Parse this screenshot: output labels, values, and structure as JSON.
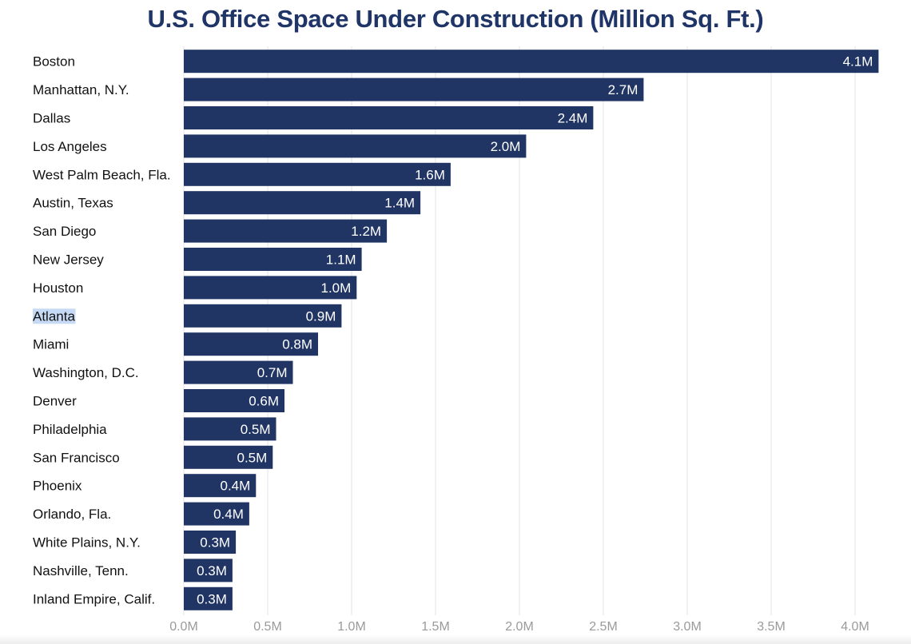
{
  "chart_data": {
    "type": "bar",
    "orientation": "horizontal",
    "title": "U.S. Office Space Under Construction (Million Sq. Ft.)",
    "xlabel": "",
    "ylabel": "",
    "xlim": [
      0,
      4.0
    ],
    "x_ticks": [
      0,
      0.5,
      1.0,
      1.5,
      2.0,
      2.5,
      3.0,
      3.5,
      4.0
    ],
    "x_tick_labels": [
      "0.0M",
      "0.5M",
      "1.0M",
      "1.5M",
      "2.0M",
      "2.5M",
      "3.0M",
      "3.5M",
      "4.0M"
    ],
    "grid": true,
    "legend": "none",
    "bar_color": "#213565",
    "gridline_color": "#e3e3e3",
    "highlight_color": "#c6daf5",
    "highlighted_category": "Atlanta",
    "categories": [
      "Boston",
      "Manhattan, N.Y.",
      "Dallas",
      "Los Angeles",
      "West Palm Beach, Fla.",
      "Austin, Texas",
      "San Diego",
      "New Jersey",
      "Houston",
      "Atlanta",
      "Miami",
      "Washington, D.C.",
      "Denver",
      "Philadelphia",
      "San Francisco",
      "Phoenix",
      "Orlando, Fla.",
      "White Plains, N.Y.",
      "Nashville, Tenn.",
      "Inland Empire, Calif."
    ],
    "values": [
      4.14,
      2.74,
      2.44,
      2.04,
      1.59,
      1.41,
      1.21,
      1.06,
      1.03,
      0.94,
      0.8,
      0.65,
      0.6,
      0.55,
      0.53,
      0.43,
      0.39,
      0.31,
      0.29,
      0.29
    ],
    "value_labels": [
      "4.1M",
      "2.7M",
      "2.4M",
      "2.0M",
      "1.6M",
      "1.4M",
      "1.2M",
      "1.1M",
      "1.0M",
      "0.9M",
      "0.8M",
      "0.7M",
      "0.6M",
      "0.5M",
      "0.5M",
      "0.4M",
      "0.4M",
      "0.3M",
      "0.3M",
      "0.3M"
    ]
  }
}
